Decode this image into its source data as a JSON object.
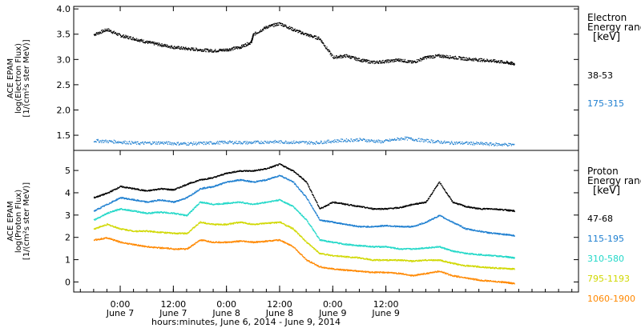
{
  "chart_data": [
    {
      "type": "scatter",
      "panel": "electron",
      "ylabel_lines": [
        "ACE EPAM",
        "log(Electron Flux)",
        "[1/(cm²s ster MeV)]"
      ],
      "ylim": [
        1.2,
        4.05
      ],
      "yticks": [
        1.5,
        2.0,
        2.5,
        3.0,
        3.5,
        4.0
      ],
      "ytick_labels": [
        "1.5",
        "2.0",
        "2.5",
        "3.0",
        "3.5",
        "4.0"
      ],
      "legend_title_lines": [
        "Electron",
        "Energy ranges",
        "[keV]"
      ],
      "series": [
        {
          "name": "38-53",
          "color": "#000000",
          "x": [
            0,
            6,
            12,
            18,
            24,
            30,
            36,
            42,
            48,
            54,
            60,
            66,
            71,
            72,
            78,
            84,
            90,
            96,
            102,
            108,
            114,
            120,
            126,
            132,
            138,
            144,
            150,
            156,
            162,
            168,
            174,
            180,
            186,
            190
          ],
          "values": [
            3.5,
            3.6,
            3.48,
            3.42,
            3.35,
            3.3,
            3.25,
            3.22,
            3.2,
            3.18,
            3.2,
            3.25,
            3.35,
            3.5,
            3.65,
            3.72,
            3.6,
            3.5,
            3.42,
            3.05,
            3.08,
            3.0,
            2.95,
            2.97,
            3.0,
            2.95,
            3.05,
            3.08,
            3.05,
            3.02,
            3.0,
            2.98,
            2.95,
            2.92
          ]
        },
        {
          "name": "175-315",
          "color": "#1e7fd0",
          "x": [
            0,
            10,
            20,
            30,
            40,
            50,
            60,
            70,
            80,
            90,
            100,
            110,
            120,
            130,
            140,
            150,
            160,
            170,
            180,
            190
          ],
          "values": [
            1.4,
            1.38,
            1.35,
            1.36,
            1.34,
            1.35,
            1.37,
            1.36,
            1.38,
            1.37,
            1.36,
            1.4,
            1.42,
            1.38,
            1.45,
            1.4,
            1.36,
            1.35,
            1.33,
            1.32
          ]
        }
      ]
    },
    {
      "type": "scatter",
      "panel": "proton",
      "ylabel_lines": [
        "ACE EPAM",
        "log(Proton Flux)",
        "[1/(cm²s ster MeV)]"
      ],
      "ylim": [
        -0.45,
        5.9
      ],
      "yticks": [
        0,
        1,
        2,
        3,
        4,
        5
      ],
      "ytick_labels": [
        "0",
        "1",
        "2",
        "3",
        "4",
        "5"
      ],
      "legend_title_lines": [
        "Proton",
        "Energy ranges",
        "[keV]"
      ],
      "series": [
        {
          "name": "47-68",
          "color": "#000000",
          "x": [
            0,
            6,
            12,
            18,
            24,
            30,
            36,
            42,
            48,
            54,
            60,
            66,
            72,
            78,
            84,
            90,
            96,
            102,
            108,
            114,
            120,
            126,
            132,
            138,
            144,
            150,
            156,
            162,
            168,
            174,
            180,
            186,
            190
          ],
          "values": [
            3.8,
            4.0,
            4.3,
            4.2,
            4.1,
            4.2,
            4.15,
            4.4,
            4.6,
            4.7,
            4.9,
            5.0,
            5.0,
            5.1,
            5.3,
            5.0,
            4.5,
            3.3,
            3.6,
            3.5,
            3.4,
            3.3,
            3.3,
            3.35,
            3.5,
            3.6,
            4.5,
            3.6,
            3.4,
            3.3,
            3.3,
            3.25,
            3.2
          ]
        },
        {
          "name": "115-195",
          "color": "#1e7fd0",
          "x": [
            0,
            6,
            12,
            18,
            24,
            30,
            36,
            42,
            48,
            54,
            60,
            66,
            72,
            78,
            84,
            90,
            96,
            102,
            108,
            114,
            120,
            126,
            132,
            138,
            144,
            150,
            156,
            162,
            168,
            174,
            180,
            186,
            190
          ],
          "values": [
            3.2,
            3.5,
            3.8,
            3.7,
            3.6,
            3.7,
            3.6,
            3.8,
            4.2,
            4.3,
            4.5,
            4.6,
            4.5,
            4.6,
            4.8,
            4.5,
            3.8,
            2.8,
            2.7,
            2.6,
            2.5,
            2.5,
            2.55,
            2.5,
            2.5,
            2.7,
            3.0,
            2.7,
            2.4,
            2.3,
            2.2,
            2.15,
            2.1
          ]
        },
        {
          "name": "310-580",
          "color": "#22d8c8",
          "x": [
            0,
            6,
            12,
            18,
            24,
            30,
            36,
            42,
            48,
            54,
            60,
            66,
            72,
            78,
            84,
            90,
            96,
            102,
            108,
            114,
            120,
            126,
            132,
            138,
            144,
            150,
            156,
            162,
            168,
            174,
            180,
            186,
            190
          ],
          "values": [
            2.8,
            3.1,
            3.3,
            3.2,
            3.1,
            3.15,
            3.1,
            3.0,
            3.6,
            3.5,
            3.55,
            3.6,
            3.5,
            3.6,
            3.7,
            3.4,
            2.8,
            1.9,
            1.8,
            1.7,
            1.65,
            1.6,
            1.6,
            1.5,
            1.5,
            1.55,
            1.6,
            1.4,
            1.3,
            1.25,
            1.2,
            1.15,
            1.1
          ]
        },
        {
          "name": "795-1193",
          "color": "#d0d800",
          "x": [
            0,
            6,
            12,
            18,
            24,
            30,
            36,
            42,
            48,
            54,
            60,
            66,
            72,
            78,
            84,
            90,
            96,
            102,
            108,
            114,
            120,
            126,
            132,
            138,
            144,
            150,
            156,
            162,
            168,
            174,
            180,
            186,
            190
          ],
          "values": [
            2.4,
            2.6,
            2.4,
            2.3,
            2.3,
            2.25,
            2.2,
            2.2,
            2.7,
            2.6,
            2.6,
            2.7,
            2.6,
            2.65,
            2.7,
            2.4,
            1.8,
            1.3,
            1.2,
            1.15,
            1.1,
            1.0,
            1.0,
            1.0,
            0.95,
            1.0,
            1.0,
            0.85,
            0.75,
            0.7,
            0.65,
            0.62,
            0.6
          ]
        },
        {
          "name": "1060-1900",
          "color": "#ff8800",
          "x": [
            0,
            6,
            12,
            18,
            24,
            30,
            36,
            42,
            48,
            54,
            60,
            66,
            72,
            78,
            84,
            90,
            96,
            102,
            108,
            114,
            120,
            126,
            132,
            138,
            144,
            150,
            156,
            162,
            168,
            174,
            180,
            186,
            190
          ],
          "values": [
            1.9,
            2.0,
            1.8,
            1.7,
            1.6,
            1.55,
            1.5,
            1.5,
            1.9,
            1.8,
            1.8,
            1.85,
            1.8,
            1.85,
            1.9,
            1.6,
            1.0,
            0.7,
            0.6,
            0.55,
            0.5,
            0.45,
            0.45,
            0.4,
            0.3,
            0.4,
            0.5,
            0.3,
            0.2,
            0.1,
            0.05,
            0.0,
            -0.05
          ]
        }
      ]
    }
  ],
  "x_axis": {
    "xlim": [
      -9,
      219
    ],
    "ticks": [
      {
        "x": 12,
        "time": "0:00",
        "date": "June 7"
      },
      {
        "x": 36,
        "time": "12:00",
        "date": "June 7"
      },
      {
        "x": 60,
        "time": "0:00",
        "date": "June 8"
      },
      {
        "x": 84,
        "time": "12:00",
        "date": "June 8"
      },
      {
        "x": 108,
        "time": "0:00",
        "date": "June 9"
      },
      {
        "x": 132,
        "time": "12:00",
        "date": "June 9"
      }
    ],
    "label": "hours:minutes, June  6, 2014 - June  9, 2014"
  }
}
